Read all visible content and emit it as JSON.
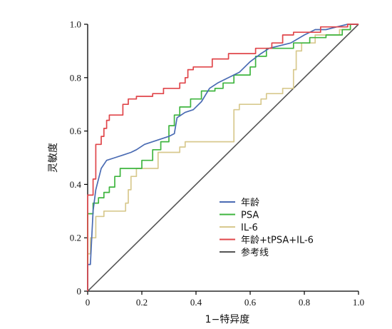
{
  "chart_data": {
    "type": "line",
    "title": "",
    "xlabel": "1−特异度",
    "ylabel": "灵敏度",
    "xlim": [
      0,
      1
    ],
    "ylim": [
      0,
      1
    ],
    "xticks": [
      "0",
      "0.2",
      "0.4",
      "0.6",
      "0.8",
      "1.0"
    ],
    "yticks": [
      "0",
      "0.2",
      "0.4",
      "0.6",
      "0.8",
      "1.0"
    ],
    "grid": false,
    "legend_position": "bottom-right",
    "series": [
      {
        "name": "年龄",
        "color": "#4a6bb3",
        "points": [
          [
            0,
            0
          ],
          [
            0,
            0.1
          ],
          [
            0.01,
            0.1
          ],
          [
            0.02,
            0.3
          ],
          [
            0.03,
            0.38
          ],
          [
            0.04,
            0.42
          ],
          [
            0.05,
            0.46
          ],
          [
            0.07,
            0.49
          ],
          [
            0.1,
            0.5
          ],
          [
            0.13,
            0.51
          ],
          [
            0.16,
            0.52
          ],
          [
            0.18,
            0.53
          ],
          [
            0.21,
            0.55
          ],
          [
            0.24,
            0.56
          ],
          [
            0.27,
            0.57
          ],
          [
            0.3,
            0.58
          ],
          [
            0.32,
            0.59
          ],
          [
            0.33,
            0.65
          ],
          [
            0.36,
            0.67
          ],
          [
            0.39,
            0.68
          ],
          [
            0.42,
            0.71
          ],
          [
            0.45,
            0.76
          ],
          [
            0.48,
            0.78
          ],
          [
            0.52,
            0.8
          ],
          [
            0.56,
            0.82
          ],
          [
            0.6,
            0.86
          ],
          [
            0.64,
            0.89
          ],
          [
            0.67,
            0.91
          ],
          [
            0.71,
            0.92
          ],
          [
            0.75,
            0.93
          ],
          [
            0.8,
            0.96
          ],
          [
            0.84,
            0.98
          ],
          [
            0.88,
            0.98
          ],
          [
            0.92,
            0.99
          ],
          [
            0.96,
            1.0
          ],
          [
            1.0,
            1.0
          ]
        ]
      },
      {
        "name": "PSA",
        "color": "#3fb53f",
        "points": [
          [
            0,
            0
          ],
          [
            0,
            0.29
          ],
          [
            0.02,
            0.29
          ],
          [
            0.02,
            0.33
          ],
          [
            0.04,
            0.33
          ],
          [
            0.04,
            0.35
          ],
          [
            0.06,
            0.35
          ],
          [
            0.06,
            0.37
          ],
          [
            0.08,
            0.37
          ],
          [
            0.08,
            0.39
          ],
          [
            0.1,
            0.39
          ],
          [
            0.1,
            0.43
          ],
          [
            0.12,
            0.43
          ],
          [
            0.12,
            0.46
          ],
          [
            0.2,
            0.46
          ],
          [
            0.2,
            0.49
          ],
          [
            0.24,
            0.49
          ],
          [
            0.24,
            0.53
          ],
          [
            0.27,
            0.53
          ],
          [
            0.27,
            0.56
          ],
          [
            0.3,
            0.56
          ],
          [
            0.3,
            0.62
          ],
          [
            0.32,
            0.62
          ],
          [
            0.32,
            0.66
          ],
          [
            0.34,
            0.66
          ],
          [
            0.34,
            0.69
          ],
          [
            0.38,
            0.69
          ],
          [
            0.38,
            0.72
          ],
          [
            0.42,
            0.72
          ],
          [
            0.42,
            0.75
          ],
          [
            0.47,
            0.75
          ],
          [
            0.47,
            0.76
          ],
          [
            0.5,
            0.76
          ],
          [
            0.5,
            0.78
          ],
          [
            0.54,
            0.78
          ],
          [
            0.54,
            0.81
          ],
          [
            0.6,
            0.81
          ],
          [
            0.6,
            0.84
          ],
          [
            0.62,
            0.84
          ],
          [
            0.62,
            0.88
          ],
          [
            0.66,
            0.88
          ],
          [
            0.66,
            0.91
          ],
          [
            0.76,
            0.91
          ],
          [
            0.76,
            0.93
          ],
          [
            0.82,
            0.93
          ],
          [
            0.82,
            0.95
          ],
          [
            0.88,
            0.95
          ],
          [
            0.88,
            0.96
          ],
          [
            0.94,
            0.96
          ],
          [
            0.94,
            0.98
          ],
          [
            0.97,
            0.98
          ],
          [
            0.97,
            1.0
          ],
          [
            1.0,
            1.0
          ]
        ]
      },
      {
        "name": "IL-6",
        "color": "#d8c98e",
        "points": [
          [
            0,
            0
          ],
          [
            0,
            0.14
          ],
          [
            0.01,
            0.14
          ],
          [
            0.01,
            0.2
          ],
          [
            0.03,
            0.2
          ],
          [
            0.03,
            0.28
          ],
          [
            0.06,
            0.28
          ],
          [
            0.06,
            0.3
          ],
          [
            0.14,
            0.3
          ],
          [
            0.14,
            0.33
          ],
          [
            0.15,
            0.33
          ],
          [
            0.15,
            0.38
          ],
          [
            0.16,
            0.38
          ],
          [
            0.16,
            0.43
          ],
          [
            0.18,
            0.43
          ],
          [
            0.18,
            0.46
          ],
          [
            0.26,
            0.46
          ],
          [
            0.26,
            0.52
          ],
          [
            0.34,
            0.52
          ],
          [
            0.34,
            0.54
          ],
          [
            0.36,
            0.54
          ],
          [
            0.36,
            0.56
          ],
          [
            0.54,
            0.56
          ],
          [
            0.54,
            0.68
          ],
          [
            0.56,
            0.68
          ],
          [
            0.56,
            0.7
          ],
          [
            0.64,
            0.7
          ],
          [
            0.64,
            0.72
          ],
          [
            0.66,
            0.72
          ],
          [
            0.66,
            0.74
          ],
          [
            0.72,
            0.74
          ],
          [
            0.72,
            0.76
          ],
          [
            0.76,
            0.76
          ],
          [
            0.76,
            0.83
          ],
          [
            0.77,
            0.83
          ],
          [
            0.77,
            0.9
          ],
          [
            0.79,
            0.9
          ],
          [
            0.79,
            0.93
          ],
          [
            0.84,
            0.93
          ],
          [
            0.84,
            0.96
          ],
          [
            0.93,
            0.96
          ],
          [
            0.93,
            0.98
          ],
          [
            0.97,
            0.98
          ],
          [
            0.97,
            1.0
          ],
          [
            1.0,
            1.0
          ]
        ]
      },
      {
        "name": "年龄+tPSA+IL-6",
        "color": "#e0464a",
        "points": [
          [
            0,
            0
          ],
          [
            0,
            0.36
          ],
          [
            0.02,
            0.36
          ],
          [
            0.02,
            0.42
          ],
          [
            0.03,
            0.42
          ],
          [
            0.03,
            0.55
          ],
          [
            0.05,
            0.55
          ],
          [
            0.05,
            0.58
          ],
          [
            0.06,
            0.58
          ],
          [
            0.06,
            0.61
          ],
          [
            0.07,
            0.61
          ],
          [
            0.07,
            0.64
          ],
          [
            0.08,
            0.64
          ],
          [
            0.08,
            0.66
          ],
          [
            0.13,
            0.66
          ],
          [
            0.13,
            0.7
          ],
          [
            0.15,
            0.7
          ],
          [
            0.15,
            0.72
          ],
          [
            0.18,
            0.72
          ],
          [
            0.18,
            0.73
          ],
          [
            0.24,
            0.73
          ],
          [
            0.24,
            0.74
          ],
          [
            0.28,
            0.74
          ],
          [
            0.28,
            0.76
          ],
          [
            0.34,
            0.76
          ],
          [
            0.34,
            0.78
          ],
          [
            0.36,
            0.78
          ],
          [
            0.36,
            0.8
          ],
          [
            0.37,
            0.8
          ],
          [
            0.37,
            0.83
          ],
          [
            0.39,
            0.83
          ],
          [
            0.39,
            0.84
          ],
          [
            0.46,
            0.84
          ],
          [
            0.46,
            0.87
          ],
          [
            0.52,
            0.87
          ],
          [
            0.52,
            0.89
          ],
          [
            0.62,
            0.89
          ],
          [
            0.62,
            0.91
          ],
          [
            0.68,
            0.91
          ],
          [
            0.68,
            0.93
          ],
          [
            0.72,
            0.93
          ],
          [
            0.72,
            0.96
          ],
          [
            0.76,
            0.96
          ],
          [
            0.76,
            0.97
          ],
          [
            0.86,
            0.97
          ],
          [
            0.86,
            0.99
          ],
          [
            0.96,
            0.99
          ],
          [
            0.96,
            1.0
          ],
          [
            1.0,
            1.0
          ]
        ]
      },
      {
        "name": "参考线",
        "color": "#555555",
        "points": [
          [
            0,
            0
          ],
          [
            1,
            1
          ]
        ]
      }
    ]
  }
}
